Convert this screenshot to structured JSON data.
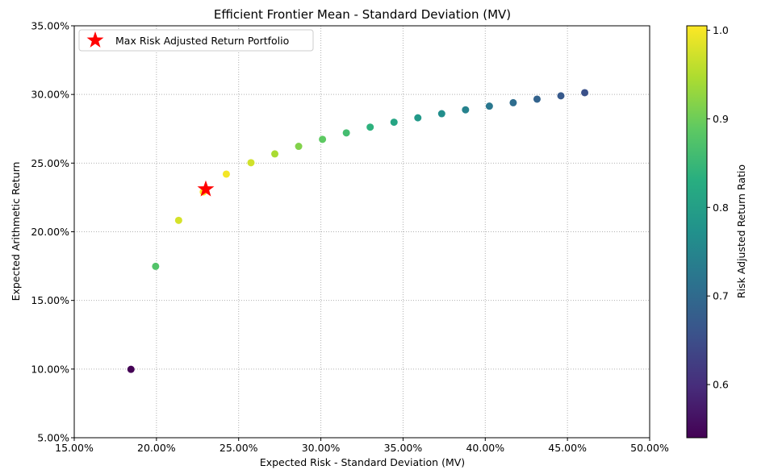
{
  "chart_data": {
    "type": "scatter",
    "title": "Efficient Frontier Mean - Standard Deviation (MV)",
    "xlabel": "Expected Risk - Standard Deviation (MV)",
    "ylabel": "Expected Arithmetic Return",
    "xlim": [
      0.15,
      0.5
    ],
    "ylim": [
      0.05,
      0.35
    ],
    "x_ticks": [
      0.15,
      0.2,
      0.25,
      0.3,
      0.35,
      0.4,
      0.45,
      0.5
    ],
    "y_ticks": [
      0.05,
      0.1,
      0.15,
      0.2,
      0.25,
      0.3,
      0.35
    ],
    "x_tick_labels": [
      "15.00%",
      "20.00%",
      "25.00%",
      "30.00%",
      "35.00%",
      "40.00%",
      "45.00%",
      "50.00%"
    ],
    "y_tick_labels": [
      "5.00%",
      "10.00%",
      "15.00%",
      "20.00%",
      "25.00%",
      "30.00%",
      "35.00%"
    ],
    "grid": true,
    "colormap": "viridis",
    "colorbar": {
      "label": "Risk Adjusted Return Ratio",
      "range": [
        0.54,
        1.005
      ],
      "ticks": [
        0.6,
        0.7,
        0.8,
        0.9,
        1.0
      ],
      "tick_labels": [
        "0.6",
        "0.7",
        "0.8",
        "0.9",
        "1.0"
      ]
    },
    "points": [
      {
        "x": 0.1845,
        "y": 0.0998,
        "ratio": 0.541
      },
      {
        "x": 0.1995,
        "y": 0.1748,
        "ratio": 0.876
      },
      {
        "x": 0.2135,
        "y": 0.2083,
        "ratio": 0.976
      },
      {
        "x": 0.2285,
        "y": 0.229,
        "ratio": 1.002
      },
      {
        "x": 0.2425,
        "y": 0.242,
        "ratio": 0.998
      },
      {
        "x": 0.2575,
        "y": 0.2503,
        "ratio": 0.972
      },
      {
        "x": 0.272,
        "y": 0.2567,
        "ratio": 0.944
      },
      {
        "x": 0.2865,
        "y": 0.2622,
        "ratio": 0.915
      },
      {
        "x": 0.301,
        "y": 0.2673,
        "ratio": 0.888
      },
      {
        "x": 0.3155,
        "y": 0.272,
        "ratio": 0.862
      },
      {
        "x": 0.33,
        "y": 0.2762,
        "ratio": 0.837
      },
      {
        "x": 0.3445,
        "y": 0.2798,
        "ratio": 0.812
      },
      {
        "x": 0.359,
        "y": 0.283,
        "ratio": 0.788
      },
      {
        "x": 0.3735,
        "y": 0.286,
        "ratio": 0.766
      },
      {
        "x": 0.388,
        "y": 0.2888,
        "ratio": 0.744
      },
      {
        "x": 0.4025,
        "y": 0.2915,
        "ratio": 0.724
      },
      {
        "x": 0.417,
        "y": 0.294,
        "ratio": 0.705
      },
      {
        "x": 0.4315,
        "y": 0.2966,
        "ratio": 0.687
      },
      {
        "x": 0.446,
        "y": 0.299,
        "ratio": 0.67
      },
      {
        "x": 0.4605,
        "y": 0.3013,
        "ratio": 0.654
      }
    ],
    "highlight": {
      "label": "Max Risk Adjusted Return Portfolio",
      "x": 0.23,
      "y": 0.231,
      "color": "#ff0000",
      "marker": "star"
    },
    "legend_position": "top-left"
  }
}
